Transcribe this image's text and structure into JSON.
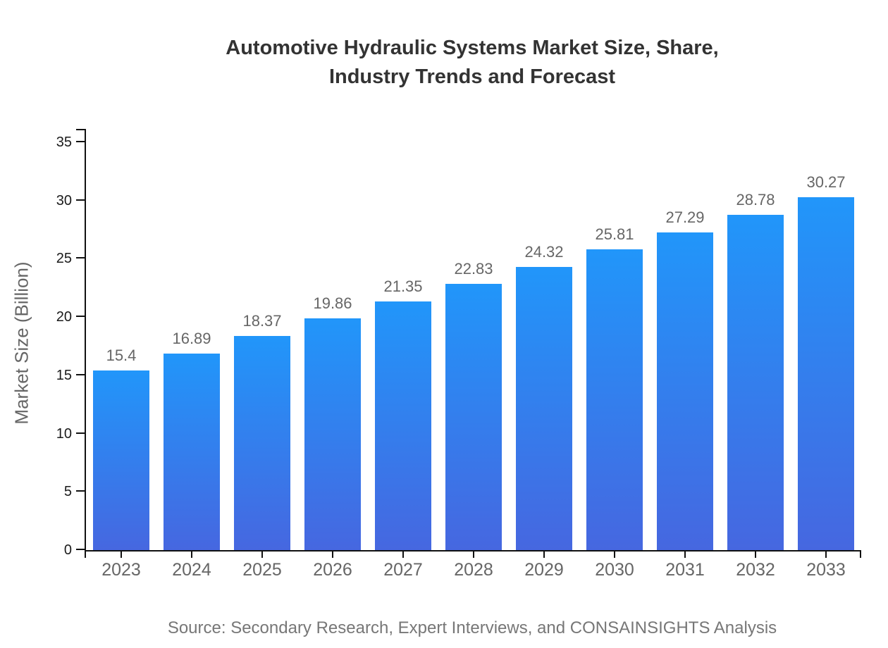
{
  "title": {
    "line1": "Automotive Hydraulic Systems Market Size, Share,",
    "line2": "Industry Trends and Forecast"
  },
  "chart_data": {
    "type": "bar",
    "title": "Automotive Hydraulic Systems Market Size, Share, Industry Trends and Forecast",
    "categories": [
      "2023",
      "2024",
      "2025",
      "2026",
      "2027",
      "2028",
      "2029",
      "2030",
      "2031",
      "2032",
      "2033"
    ],
    "values": [
      15.4,
      16.89,
      18.37,
      19.86,
      21.35,
      22.83,
      24.32,
      25.81,
      27.29,
      28.78,
      30.27
    ],
    "xlabel": "",
    "ylabel": "Market Size (Billion)",
    "ylim": [
      0,
      35
    ],
    "yticks": [
      0,
      5,
      10,
      15,
      20,
      25,
      30,
      35
    ],
    "grid": false,
    "legend": false,
    "bar_color_top": "#2196fa",
    "bar_color_bottom": "#4667e0"
  },
  "footer": {
    "source": "Source: Secondary Research, Expert Interviews, and CONSAINSIGHTS Analysis"
  },
  "colors": {
    "background": "#ffffff",
    "title_text": "#333333",
    "axis": "#111111",
    "y_tick_label": "#1a1a1a",
    "x_tick_label": "#666666",
    "value_label": "#666666",
    "y_axis_title": "#666666",
    "source_text": "#777777"
  }
}
